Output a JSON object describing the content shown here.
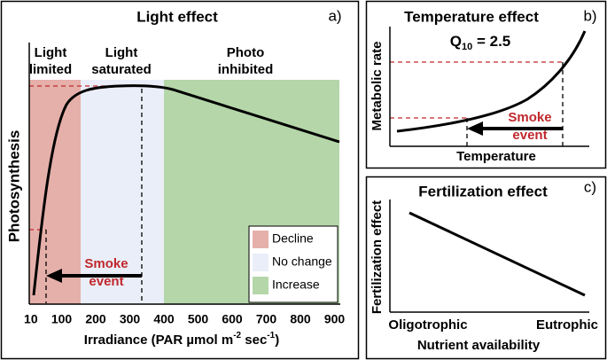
{
  "panel_a": {
    "title": "Light effect",
    "letter": "a)",
    "zones": [
      {
        "line1": "Light",
        "line2": "limited"
      },
      {
        "line1": "Light",
        "line2": "saturated"
      },
      {
        "line1": "Photo",
        "line2": "inhibited"
      }
    ],
    "y_label": "Photosynthesis",
    "x_label": {
      "main": "Irradiance (PAR µmol m",
      "sup1": "-2",
      "mid": " sec",
      "sup2": "-1",
      "end": ")"
    },
    "x_ticks": [
      10,
      100,
      200,
      300,
      400,
      500,
      600,
      700,
      800,
      900
    ],
    "event_line1": "Smoke",
    "event_line2": "event",
    "legend": [
      "Decline",
      "No change",
      "Increase"
    ]
  },
  "panel_b": {
    "title": "Temperature effect",
    "letter": "b)",
    "q10": {
      "symbol": "Q",
      "subscript": "10",
      "equation": " = 2.5"
    },
    "y_label": "Metabolic rate",
    "x_label": "Temperature",
    "event_line1": "Smoke",
    "event_line2": "event"
  },
  "panel_c": {
    "title": "Fertilization effect",
    "letter": "c)",
    "y_label": "Fertilization effect",
    "x_start": "Oligotrophic",
    "x_end": "Eutrophic",
    "x_label": "Nutrient availability"
  }
}
